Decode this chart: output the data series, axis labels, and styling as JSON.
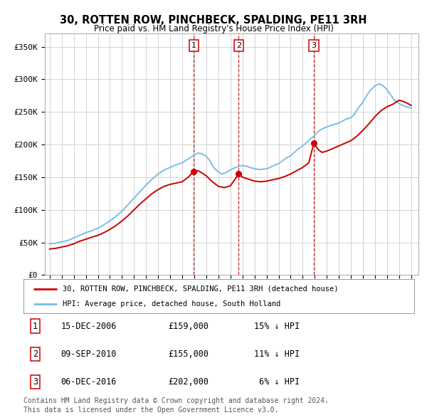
{
  "title": "30, ROTTEN ROW, PINCHBECK, SPALDING, PE11 3RH",
  "subtitle": "Price paid vs. HM Land Registry's House Price Index (HPI)",
  "ylabel_ticks": [
    "£0",
    "£50K",
    "£100K",
    "£150K",
    "£200K",
    "£250K",
    "£300K",
    "£350K"
  ],
  "ytick_values": [
    0,
    50000,
    100000,
    150000,
    200000,
    250000,
    300000,
    350000
  ],
  "ylim": [
    0,
    370000
  ],
  "xlim_start": 1994.6,
  "xlim_end": 2025.6,
  "hpi_color": "#7abde8",
  "price_color": "#cc0000",
  "dashed_color": "#cc0000",
  "grid_color": "#cccccc",
  "sale_dates": [
    2006.96,
    2010.69,
    2016.92
  ],
  "sale_prices": [
    159000,
    155000,
    202000
  ],
  "sale_labels": [
    "1",
    "2",
    "3"
  ],
  "legend_entry1": "30, ROTTEN ROW, PINCHBECK, SPALDING, PE11 3RH (detached house)",
  "legend_entry2": "HPI: Average price, detached house, South Holland",
  "table_data": [
    [
      "1",
      "15-DEC-2006",
      "£159,000",
      "15% ↓ HPI"
    ],
    [
      "2",
      "09-SEP-2010",
      "£155,000",
      "11% ↓ HPI"
    ],
    [
      "3",
      "06-DEC-2016",
      "£202,000",
      " 6% ↓ HPI"
    ]
  ],
  "footnote1": "Contains HM Land Registry data © Crown copyright and database right 2024.",
  "footnote2": "This data is licensed under the Open Government Licence v3.0.",
  "background_color": "#ffffff",
  "plot_bg_color": "#ffffff",
  "years_hpi": [
    1995.0,
    1995.5,
    1996.0,
    1996.5,
    1997.0,
    1997.5,
    1998.0,
    1998.5,
    1999.0,
    1999.5,
    2000.0,
    2000.5,
    2001.0,
    2001.5,
    2002.0,
    2002.5,
    2003.0,
    2003.5,
    2004.0,
    2004.5,
    2005.0,
    2005.5,
    2006.0,
    2006.5,
    2007.0,
    2007.3,
    2007.6,
    2008.0,
    2008.3,
    2008.6,
    2009.0,
    2009.3,
    2009.6,
    2010.0,
    2010.3,
    2010.6,
    2011.0,
    2011.3,
    2011.6,
    2012.0,
    2012.3,
    2012.6,
    2013.0,
    2013.3,
    2013.6,
    2014.0,
    2014.3,
    2014.6,
    2015.0,
    2015.3,
    2015.6,
    2016.0,
    2016.3,
    2016.6,
    2017.0,
    2017.3,
    2017.6,
    2018.0,
    2018.3,
    2018.6,
    2019.0,
    2019.3,
    2019.6,
    2020.0,
    2020.3,
    2020.6,
    2021.0,
    2021.3,
    2021.6,
    2022.0,
    2022.3,
    2022.6,
    2023.0,
    2023.3,
    2023.6,
    2024.0,
    2024.3,
    2024.6,
    2025.0
  ],
  "vals_hpi": [
    48000,
    49000,
    51000,
    53000,
    57000,
    61000,
    65000,
    68000,
    72000,
    77000,
    83000,
    90000,
    98000,
    108000,
    118000,
    128000,
    138000,
    147000,
    155000,
    161000,
    165000,
    169000,
    172000,
    178000,
    184000,
    187000,
    186000,
    182000,
    175000,
    165000,
    158000,
    155000,
    157000,
    161000,
    164000,
    166000,
    168000,
    167000,
    165000,
    163000,
    162000,
    162000,
    163000,
    165000,
    168000,
    171000,
    175000,
    179000,
    183000,
    188000,
    193000,
    198000,
    203000,
    208000,
    214000,
    220000,
    224000,
    227000,
    229000,
    231000,
    233000,
    236000,
    239000,
    241000,
    247000,
    256000,
    265000,
    275000,
    283000,
    290000,
    293000,
    291000,
    284000,
    276000,
    268000,
    263000,
    260000,
    258000,
    256000
  ],
  "years_price": [
    1995.0,
    1995.5,
    1996.0,
    1996.5,
    1997.0,
    1997.5,
    1998.0,
    1998.5,
    1999.0,
    1999.5,
    2000.0,
    2000.5,
    2001.0,
    2001.5,
    2002.0,
    2002.5,
    2003.0,
    2003.5,
    2004.0,
    2004.5,
    2005.0,
    2005.5,
    2006.0,
    2006.5,
    2006.96,
    2007.3,
    2007.6,
    2008.0,
    2008.5,
    2009.0,
    2009.5,
    2010.0,
    2010.69,
    2011.0,
    2011.5,
    2012.0,
    2012.5,
    2013.0,
    2013.5,
    2014.0,
    2014.5,
    2015.0,
    2015.5,
    2016.0,
    2016.5,
    2016.92,
    2017.3,
    2017.6,
    2018.0,
    2018.5,
    2019.0,
    2019.5,
    2020.0,
    2020.5,
    2021.0,
    2021.5,
    2022.0,
    2022.5,
    2023.0,
    2023.5,
    2024.0,
    2024.5,
    2025.0
  ],
  "vals_price": [
    40000,
    41000,
    43000,
    45000,
    48000,
    52000,
    55000,
    58000,
    61000,
    65000,
    70000,
    76000,
    83000,
    91000,
    100000,
    109000,
    117000,
    125000,
    131000,
    136000,
    139000,
    141000,
    143000,
    150000,
    159000,
    160000,
    157000,
    152000,
    143000,
    136000,
    134000,
    137000,
    155000,
    150000,
    147000,
    144000,
    143000,
    144000,
    146000,
    148000,
    151000,
    155000,
    160000,
    165000,
    172000,
    202000,
    192000,
    188000,
    190000,
    194000,
    198000,
    202000,
    206000,
    213000,
    222000,
    232000,
    243000,
    252000,
    258000,
    262000,
    268000,
    265000,
    260000
  ]
}
